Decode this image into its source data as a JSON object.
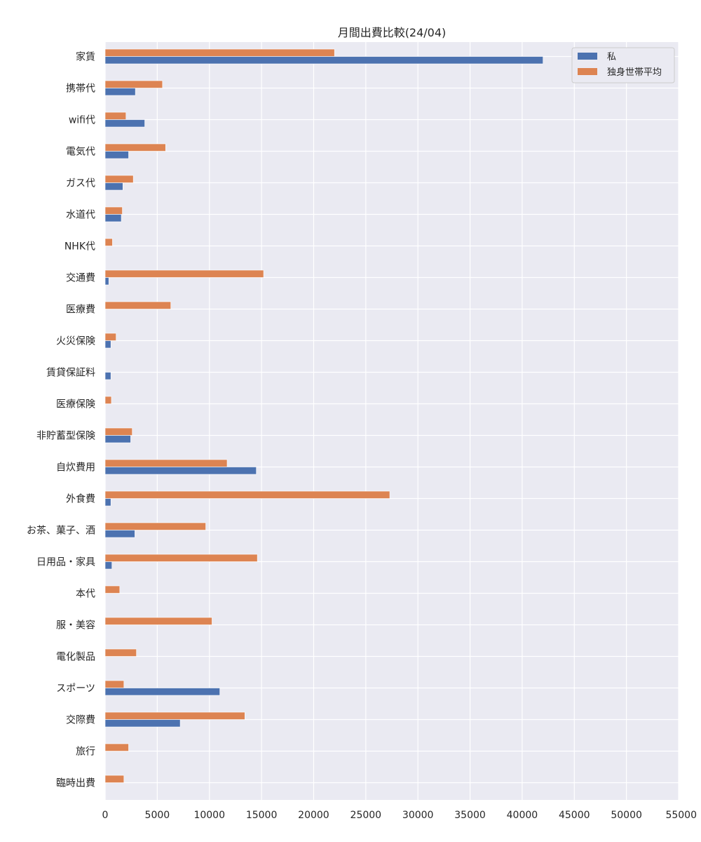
{
  "chart_data": {
    "type": "bar",
    "orientation": "horizontal",
    "title": "月間出費比較(24/04)",
    "xlabel": "",
    "ylabel": "",
    "xlim": [
      0,
      55000
    ],
    "x_ticks": [
      0,
      5000,
      10000,
      15000,
      20000,
      25000,
      30000,
      35000,
      40000,
      45000,
      50000,
      55000
    ],
    "grid": true,
    "legend_position": "top-right",
    "categories": [
      "家賃",
      "携帯代",
      "wifi代",
      "電気代",
      "ガス代",
      "水道代",
      "NHK代",
      "交通費",
      "医療費",
      "火災保険",
      "賃貸保証料",
      "医療保険",
      "非貯蓄型保険",
      "自炊費用",
      "外食費",
      "お茶、菓子、酒",
      "日用品・家具",
      "本代",
      "服・美容",
      "電化製品",
      "スポーツ",
      "交際費",
      "旅行",
      "臨時出費"
    ],
    "series": [
      {
        "name": "私",
        "color": "#4c72b0",
        "values": [
          42000,
          2900,
          3800,
          2250,
          1700,
          1550,
          0,
          350,
          0,
          550,
          550,
          0,
          2450,
          14500,
          550,
          2850,
          650,
          0,
          0,
          0,
          11000,
          7200,
          0,
          0
        ]
      },
      {
        "name": "独身世帯平均",
        "color": "#dd8452",
        "values": [
          22000,
          5500,
          2000,
          5800,
          2700,
          1650,
          700,
          15200,
          6300,
          1050,
          0,
          600,
          2600,
          11700,
          27300,
          9650,
          14600,
          1400,
          10250,
          3000,
          1800,
          13400,
          2250,
          1800
        ]
      }
    ]
  }
}
